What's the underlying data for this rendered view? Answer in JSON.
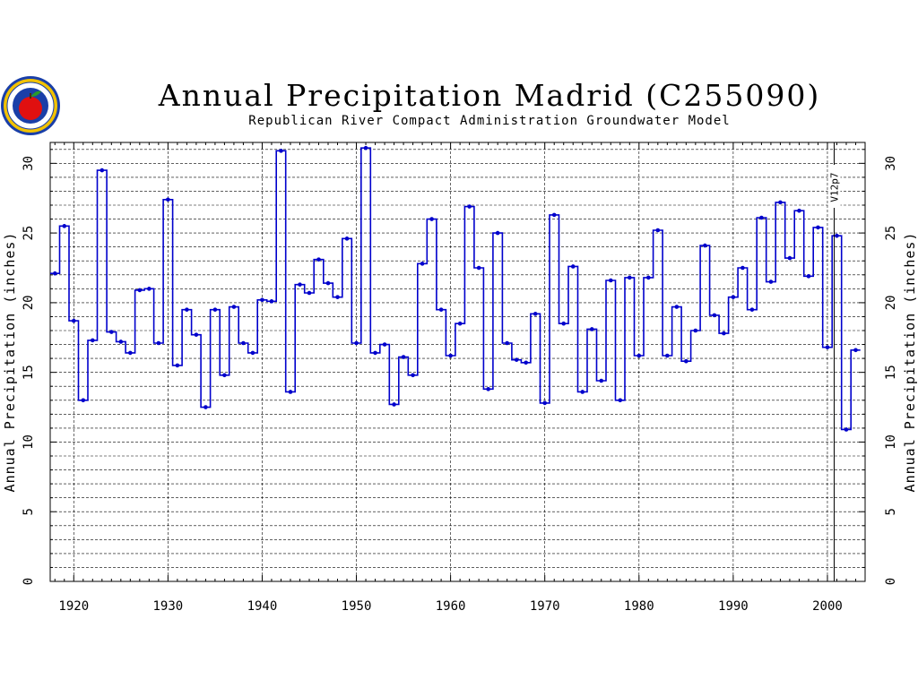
{
  "chart_data": {
    "type": "line",
    "title": "Annual Precipitation Madrid (C255090)",
    "subtitle": "Republican River Compact Administration Groundwater Model",
    "ylabel": "Annual Precipitation (inches)",
    "xlabel": "",
    "xlim": [
      1917.5,
      2004
    ],
    "ylim": [
      0,
      31.5
    ],
    "x_ticks": [
      1920,
      1930,
      1940,
      1950,
      1960,
      1970,
      1980,
      1990,
      2000
    ],
    "y_ticks": [
      0,
      5,
      10,
      15,
      20,
      25,
      30
    ],
    "grid": true,
    "step": true,
    "series": [
      {
        "color": "#0000cc",
        "x": [
          1918,
          1919,
          1920,
          1921,
          1922,
          1923,
          1924,
          1925,
          1926,
          1927,
          1928,
          1929,
          1930,
          1931,
          1932,
          1933,
          1934,
          1935,
          1936,
          1937,
          1938,
          1939,
          1940,
          1941,
          1942,
          1943,
          1944,
          1945,
          1946,
          1947,
          1948,
          1949,
          1950,
          1951,
          1952,
          1953,
          1954,
          1955,
          1956,
          1957,
          1958,
          1959,
          1960,
          1961,
          1962,
          1963,
          1964,
          1965,
          1966,
          1967,
          1968,
          1969,
          1970,
          1971,
          1972,
          1973,
          1974,
          1975,
          1976,
          1977,
          1978,
          1979,
          1980,
          1981,
          1982,
          1983,
          1984,
          1985,
          1986,
          1987,
          1988,
          1989,
          1990,
          1991,
          1992,
          1993,
          1994,
          1995,
          1996,
          1997,
          1998,
          1999,
          2000,
          2001,
          2002,
          2003
        ],
        "values": [
          22.1,
          25.5,
          18.7,
          13.0,
          17.3,
          29.5,
          17.9,
          17.2,
          16.4,
          20.9,
          21.0,
          17.1,
          27.4,
          15.5,
          19.5,
          17.7,
          12.5,
          19.5,
          14.8,
          19.7,
          17.1,
          16.4,
          20.2,
          20.1,
          30.9,
          13.6,
          21.3,
          20.7,
          23.1,
          21.4,
          20.4,
          24.6,
          17.1,
          31.1,
          16.4,
          17.0,
          12.7,
          16.1,
          14.8,
          22.8,
          26.0,
          19.5,
          16.2,
          18.5,
          26.9,
          22.5,
          13.8,
          25.0,
          17.1,
          15.9,
          15.7,
          19.2,
          12.8,
          26.3,
          18.5,
          22.6,
          13.6,
          18.1,
          14.4,
          21.6,
          13.0,
          21.8,
          16.2,
          21.8,
          25.2,
          16.2,
          19.7,
          15.8,
          18.0,
          24.1,
          19.1,
          17.8,
          20.4,
          22.5,
          19.5,
          26.1,
          21.5,
          27.2,
          23.2,
          26.6,
          21.9,
          25.4,
          16.8,
          24.8,
          10.9,
          16.6
        ]
      }
    ],
    "annotations": [
      {
        "label": "V12p7",
        "x": 2001
      }
    ]
  }
}
